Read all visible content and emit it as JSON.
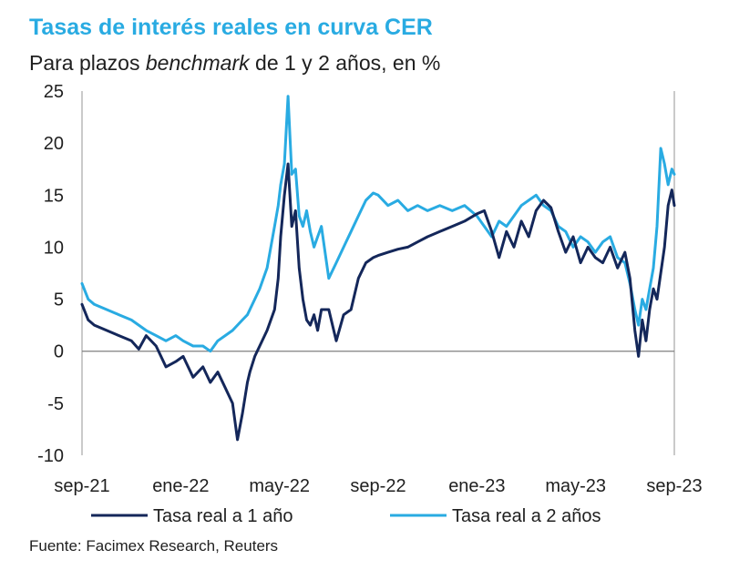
{
  "header": {
    "title": "Tasas de interés reales en curva CER",
    "subtitle_pre": "Para plazos ",
    "subtitle_em": "benchmark",
    "subtitle_post": " de 1 y 2 años, en %"
  },
  "source": "Fuente: Facimex Research, Reuters",
  "colors": {
    "series1": "#14275A",
    "series2": "#29ABE2",
    "zero_line": "#7f7f7f",
    "axis": "#a6a6a6",
    "title": "#29ABE2"
  },
  "chart_data": {
    "type": "line",
    "title": "Tasas de interés reales en curva CER",
    "subtitle": "Para plazos benchmark de 1 y 2 años, en %",
    "xlabel": "",
    "ylabel": "",
    "ylim": [
      -10,
      25
    ],
    "xlim": [
      0,
      24
    ],
    "yticks": [
      25,
      20,
      15,
      10,
      5,
      0,
      -5,
      -10
    ],
    "ytick_labels": [
      "25",
      "20",
      "15",
      "10",
      "5",
      "0",
      "-5",
      "-10"
    ],
    "xticks": [
      0,
      4,
      8,
      12,
      16,
      20,
      24
    ],
    "xtick_labels": [
      "sep-21",
      "ene-22",
      "may-22",
      "sep-22",
      "ene-23",
      "may-23",
      "sep-23"
    ],
    "x_unit": "months since sep-21",
    "series": [
      {
        "name": "Tasa real a 1 año",
        "x": [
          0,
          0.25,
          0.5,
          1,
          1.5,
          2,
          2.3,
          2.6,
          3,
          3.4,
          3.8,
          4.1,
          4.5,
          4.9,
          5.2,
          5.5,
          5.8,
          6.1,
          6.3,
          6.5,
          6.7,
          6.8,
          7.0,
          7.2,
          7.5,
          7.8,
          7.95,
          8.05,
          8.2,
          8.35,
          8.5,
          8.65,
          8.8,
          8.95,
          9.1,
          9.25,
          9.4,
          9.55,
          9.7,
          10.0,
          10.3,
          10.6,
          10.9,
          11.2,
          11.5,
          11.8,
          12.0,
          12.4,
          12.8,
          13.2,
          13.6,
          14.0,
          14.5,
          15.0,
          15.5,
          16.0,
          16.3,
          16.6,
          16.9,
          17.2,
          17.5,
          17.8,
          18.1,
          18.4,
          18.7,
          19.0,
          19.3,
          19.6,
          19.9,
          20.2,
          20.5,
          20.8,
          21.1,
          21.4,
          21.7,
          22.0,
          22.2,
          22.4,
          22.55,
          22.7,
          22.85,
          23.0,
          23.15,
          23.3,
          23.45,
          23.6,
          23.75,
          23.9,
          24.0
        ],
        "values": [
          4.5,
          3.0,
          2.5,
          2.0,
          1.5,
          1.0,
          0.2,
          1.5,
          0.5,
          -1.5,
          -1.0,
          -0.5,
          -2.5,
          -1.5,
          -3.0,
          -2.0,
          -3.5,
          -5.0,
          -8.5,
          -6.0,
          -3.0,
          -2.0,
          -0.5,
          0.5,
          2.0,
          4.0,
          7.0,
          11.0,
          15.0,
          18.0,
          12.0,
          13.5,
          8.0,
          5.0,
          3.0,
          2.5,
          3.5,
          2.0,
          4.0,
          4.0,
          1.0,
          3.5,
          4.0,
          7.0,
          8.5,
          9.0,
          9.2,
          9.5,
          9.8,
          10.0,
          10.5,
          11.0,
          11.5,
          12.0,
          12.5,
          13.2,
          13.5,
          11.5,
          9.0,
          11.5,
          10.0,
          12.5,
          11.0,
          13.5,
          14.5,
          13.8,
          11.5,
          9.5,
          11.0,
          8.5,
          10.0,
          9.0,
          8.5,
          10.0,
          8.0,
          9.5,
          7.0,
          2.0,
          -0.5,
          3.0,
          1.0,
          4.0,
          6.0,
          5.0,
          7.5,
          10.0,
          14.0,
          15.5,
          14.0
        ]
      },
      {
        "name": "Tasa real a 2 años",
        "x": [
          0,
          0.25,
          0.5,
          1,
          1.5,
          2,
          2.3,
          2.6,
          3,
          3.4,
          3.8,
          4.1,
          4.5,
          4.9,
          5.2,
          5.5,
          5.8,
          6.1,
          6.3,
          6.5,
          6.7,
          6.8,
          7.0,
          7.2,
          7.5,
          7.8,
          7.95,
          8.05,
          8.2,
          8.35,
          8.5,
          8.65,
          8.8,
          8.95,
          9.1,
          9.25,
          9.4,
          9.55,
          9.7,
          10.0,
          10.3,
          10.6,
          10.9,
          11.2,
          11.5,
          11.8,
          12.0,
          12.4,
          12.8,
          13.2,
          13.6,
          14.0,
          14.5,
          15.0,
          15.5,
          16.0,
          16.3,
          16.6,
          16.9,
          17.2,
          17.5,
          17.8,
          18.1,
          18.4,
          18.7,
          19.0,
          19.3,
          19.6,
          19.9,
          20.2,
          20.5,
          20.8,
          21.1,
          21.4,
          21.7,
          22.0,
          22.2,
          22.4,
          22.55,
          22.7,
          22.85,
          23.0,
          23.15,
          23.3,
          23.45,
          23.6,
          23.75,
          23.9,
          24.0
        ],
        "values": [
          6.5,
          5.0,
          4.5,
          4.0,
          3.5,
          3.0,
          2.5,
          2.0,
          1.5,
          1.0,
          1.5,
          1.0,
          0.5,
          0.5,
          0.0,
          1.0,
          1.5,
          2.0,
          2.5,
          3.0,
          3.5,
          4.0,
          5.0,
          6.0,
          8.0,
          12.0,
          14.0,
          16.0,
          18.0,
          24.5,
          17.0,
          17.5,
          13.0,
          12.0,
          13.5,
          11.5,
          10.0,
          11.0,
          12.0,
          7.0,
          8.5,
          10.0,
          11.5,
          13.0,
          14.5,
          15.2,
          15.0,
          14.0,
          14.5,
          13.5,
          14.0,
          13.5,
          14.0,
          13.5,
          14.0,
          13.0,
          12.0,
          11.0,
          12.5,
          12.0,
          13.0,
          14.0,
          14.5,
          15.0,
          14.0,
          13.5,
          12.0,
          11.5,
          10.0,
          11.0,
          10.5,
          9.5,
          10.5,
          11.0,
          9.0,
          8.5,
          6.5,
          4.0,
          2.5,
          5.0,
          4.0,
          6.0,
          8.0,
          12.0,
          19.5,
          18.0,
          16.0,
          17.5,
          17.0
        ]
      }
    ],
    "legend": [
      {
        "label": "Tasa real a 1 año",
        "series": 0
      },
      {
        "label": "Tasa real a 2 años",
        "series": 1
      }
    ],
    "legend_position": "bottom"
  }
}
